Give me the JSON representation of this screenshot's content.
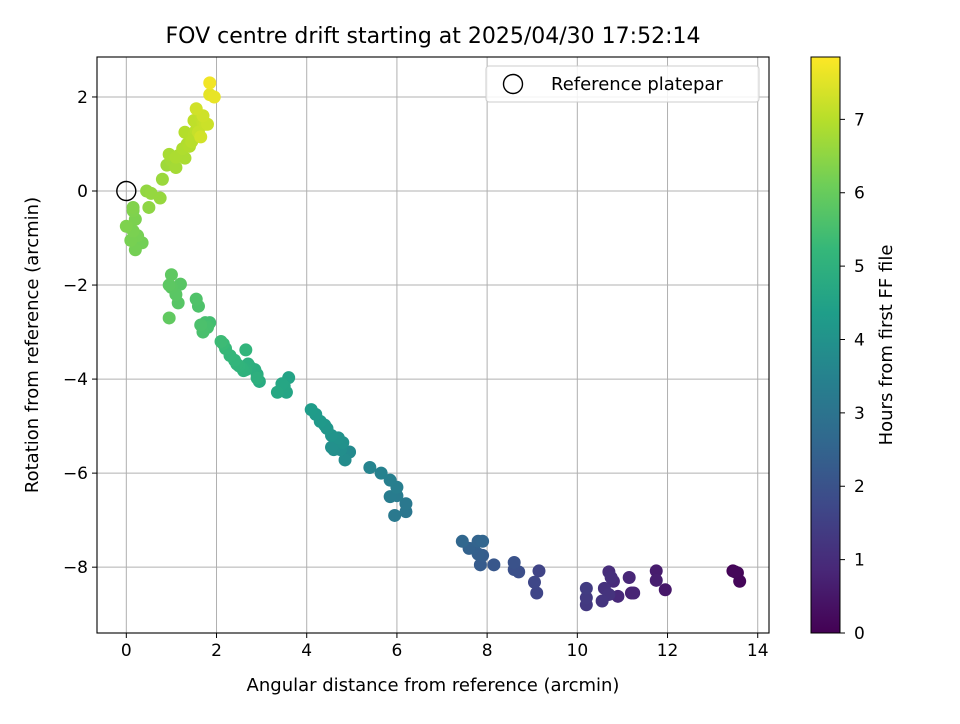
{
  "chart_data": {
    "type": "scatter",
    "title": "FOV centre drift starting at 2025/04/30 17:52:14",
    "xlabel": "Angular distance from reference (arcmin)",
    "ylabel": "Rotation from reference (arcmin)",
    "xlim": [
      -0.65,
      14.25
    ],
    "ylim": [
      -9.4,
      2.85
    ],
    "xticks": [
      0,
      2,
      4,
      6,
      8,
      10,
      12,
      14
    ],
    "yticks": [
      -8,
      -6,
      -4,
      -2,
      0,
      2
    ],
    "xtick_labels": [
      "0",
      "2",
      "4",
      "6",
      "8",
      "10",
      "12",
      "14"
    ],
    "ytick_labels": [
      "−8",
      "−6",
      "−4",
      "−2",
      "0",
      "2"
    ],
    "grid": true,
    "legend_position": "top-right",
    "legend_label": "Reference platepar",
    "reference_point": {
      "x": 0,
      "y": 0
    },
    "colormap": "viridis",
    "colormap_stops": [
      "#440154",
      "#482878",
      "#3e4989",
      "#31688e",
      "#26828e",
      "#1f9e89",
      "#35b779",
      "#6ece58",
      "#b5de2b",
      "#fde725"
    ],
    "colorbar": {
      "label": "Hours from first FF file",
      "range": [
        0,
        7.85
      ],
      "ticks": [
        0,
        1,
        2,
        3,
        4,
        5,
        6,
        7
      ],
      "tick_labels": [
        "0",
        "1",
        "2",
        "3",
        "4",
        "5",
        "6",
        "7"
      ]
    },
    "points": [
      [
        13.45,
        -8.08,
        0.05
      ],
      [
        13.55,
        -8.12,
        0.08
      ],
      [
        13.6,
        -8.3,
        0.12
      ],
      [
        13.5,
        -8.1,
        0.15
      ],
      [
        11.95,
        -8.48,
        0.5
      ],
      [
        11.75,
        -8.08,
        0.6
      ],
      [
        11.75,
        -8.28,
        0.65
      ],
      [
        11.2,
        -8.55,
        0.75
      ],
      [
        11.25,
        -8.55,
        0.8
      ],
      [
        11.15,
        -8.22,
        0.85
      ],
      [
        10.9,
        -8.62,
        0.9
      ],
      [
        10.8,
        -8.3,
        0.95
      ],
      [
        10.7,
        -8.1,
        1.0
      ],
      [
        10.75,
        -8.22,
        1.05
      ],
      [
        10.6,
        -8.45,
        1.1
      ],
      [
        10.7,
        -8.58,
        1.15
      ],
      [
        10.55,
        -8.72,
        1.2
      ],
      [
        10.2,
        -8.8,
        1.3
      ],
      [
        10.2,
        -8.65,
        1.35
      ],
      [
        10.2,
        -8.45,
        1.4
      ],
      [
        9.15,
        -8.08,
        1.6
      ],
      [
        9.1,
        -8.55,
        1.65
      ],
      [
        9.05,
        -8.32,
        1.7
      ],
      [
        8.7,
        -8.1,
        1.9
      ],
      [
        8.6,
        -8.05,
        1.95
      ],
      [
        8.6,
        -7.9,
        2.0
      ],
      [
        8.15,
        -7.95,
        2.15
      ],
      [
        7.85,
        -7.95,
        2.25
      ],
      [
        7.9,
        -7.75,
        2.3
      ],
      [
        7.8,
        -7.72,
        2.35
      ],
      [
        7.7,
        -7.6,
        2.4
      ],
      [
        7.6,
        -7.6,
        2.45
      ],
      [
        7.8,
        -7.45,
        2.5
      ],
      [
        7.9,
        -7.45,
        2.55
      ],
      [
        7.45,
        -7.45,
        2.6
      ],
      [
        6.2,
        -6.82,
        3.1
      ],
      [
        6.2,
        -6.65,
        3.15
      ],
      [
        5.95,
        -6.9,
        3.2
      ],
      [
        6.0,
        -6.48,
        3.25
      ],
      [
        5.85,
        -6.5,
        3.3
      ],
      [
        6.0,
        -6.3,
        3.35
      ],
      [
        5.85,
        -6.15,
        3.4
      ],
      [
        5.65,
        -6.0,
        3.45
      ],
      [
        5.4,
        -5.88,
        3.55
      ],
      [
        4.95,
        -5.55,
        3.75
      ],
      [
        4.85,
        -5.72,
        3.8
      ],
      [
        4.75,
        -5.5,
        3.85
      ],
      [
        4.6,
        -5.5,
        3.9
      ],
      [
        4.55,
        -5.45,
        3.92
      ],
      [
        4.8,
        -5.35,
        3.95
      ],
      [
        4.7,
        -5.25,
        4.0
      ],
      [
        4.55,
        -5.2,
        4.05
      ],
      [
        4.45,
        -5.05,
        4.1
      ],
      [
        4.4,
        -4.98,
        4.15
      ],
      [
        4.3,
        -4.9,
        4.2
      ],
      [
        4.2,
        -4.75,
        4.25
      ],
      [
        4.1,
        -4.65,
        4.3
      ],
      [
        3.6,
        -3.97,
        4.55
      ],
      [
        3.55,
        -4.28,
        4.6
      ],
      [
        3.5,
        -4.15,
        4.62
      ],
      [
        3.45,
        -4.1,
        4.65
      ],
      [
        3.35,
        -4.28,
        4.68
      ],
      [
        2.95,
        -4.05,
        4.8
      ],
      [
        2.9,
        -3.9,
        4.85
      ],
      [
        2.85,
        -3.8,
        4.88
      ],
      [
        2.75,
        -3.75,
        4.9
      ],
      [
        2.7,
        -3.68,
        4.95
      ],
      [
        2.9,
        -3.98,
        4.97
      ],
      [
        2.65,
        -3.8,
        5.0
      ],
      [
        2.6,
        -3.82,
        5.02
      ],
      [
        2.55,
        -3.75,
        5.05
      ],
      [
        2.5,
        -3.72,
        5.08
      ],
      [
        2.45,
        -3.68,
        5.1
      ],
      [
        2.65,
        -3.38,
        5.12
      ],
      [
        2.4,
        -3.6,
        5.15
      ],
      [
        2.3,
        -3.5,
        5.2
      ],
      [
        2.2,
        -3.35,
        5.25
      ],
      [
        2.15,
        -3.25,
        5.3
      ],
      [
        2.1,
        -3.2,
        5.35
      ],
      [
        1.85,
        -2.8,
        5.45
      ],
      [
        1.75,
        -2.8,
        5.5
      ],
      [
        1.8,
        -2.9,
        5.52
      ],
      [
        1.7,
        -3.0,
        5.55
      ],
      [
        1.65,
        -2.85,
        5.58
      ],
      [
        1.6,
        -2.45,
        5.62
      ],
      [
        1.55,
        -2.3,
        5.65
      ],
      [
        1.15,
        -2.38,
        5.75
      ],
      [
        1.2,
        -1.98,
        5.78
      ],
      [
        1.1,
        -2.2,
        5.8
      ],
      [
        1.0,
        -2.05,
        5.82
      ],
      [
        0.95,
        -2.0,
        5.85
      ],
      [
        1.0,
        -1.78,
        5.88
      ],
      [
        0.95,
        -2.7,
        5.9
      ],
      [
        0.35,
        -1.1,
        6.15
      ],
      [
        0.2,
        -1.25,
        6.18
      ],
      [
        0.25,
        -0.95,
        6.2
      ],
      [
        0.1,
        -1.05,
        6.22
      ],
      [
        0.15,
        -0.85,
        6.25
      ],
      [
        0.2,
        -0.6,
        6.28
      ],
      [
        0.0,
        -0.75,
        6.3
      ],
      [
        0.15,
        -0.42,
        6.32
      ],
      [
        0.15,
        -0.35,
        6.35
      ],
      [
        0.5,
        -0.35,
        6.5
      ],
      [
        0.45,
        0.0,
        6.55
      ],
      [
        0.55,
        -0.05,
        6.58
      ],
      [
        0.75,
        -0.15,
        6.6
      ],
      [
        0.8,
        0.25,
        6.65
      ],
      [
        0.9,
        0.55,
        6.7
      ],
      [
        1.0,
        0.65,
        6.75
      ],
      [
        1.1,
        0.5,
        6.78
      ],
      [
        0.95,
        0.78,
        6.8
      ],
      [
        1.15,
        0.75,
        6.82
      ],
      [
        1.3,
        0.7,
        6.85
      ],
      [
        1.1,
        0.72,
        6.87
      ],
      [
        1.25,
        0.9,
        6.9
      ],
      [
        1.35,
        1.0,
        6.92
      ],
      [
        1.4,
        0.95,
        6.95
      ],
      [
        1.3,
        1.25,
        6.97
      ],
      [
        1.5,
        1.2,
        7.0
      ],
      [
        1.45,
        1.05,
        7.02
      ],
      [
        1.55,
        1.3,
        7.05
      ],
      [
        1.6,
        1.35,
        7.08
      ],
      [
        1.5,
        1.5,
        7.1
      ],
      [
        1.65,
        1.55,
        7.12
      ],
      [
        1.7,
        1.45,
        7.15
      ],
      [
        1.6,
        1.25,
        7.18
      ],
      [
        1.75,
        1.42,
        7.2
      ],
      [
        1.8,
        1.42,
        7.25
      ],
      [
        1.7,
        1.6,
        7.28
      ],
      [
        1.55,
        1.75,
        7.3
      ],
      [
        1.65,
        1.15,
        7.32
      ],
      [
        1.85,
        2.05,
        7.55
      ],
      [
        1.95,
        2.0,
        7.6
      ],
      [
        1.85,
        2.3,
        7.7
      ]
    ]
  }
}
